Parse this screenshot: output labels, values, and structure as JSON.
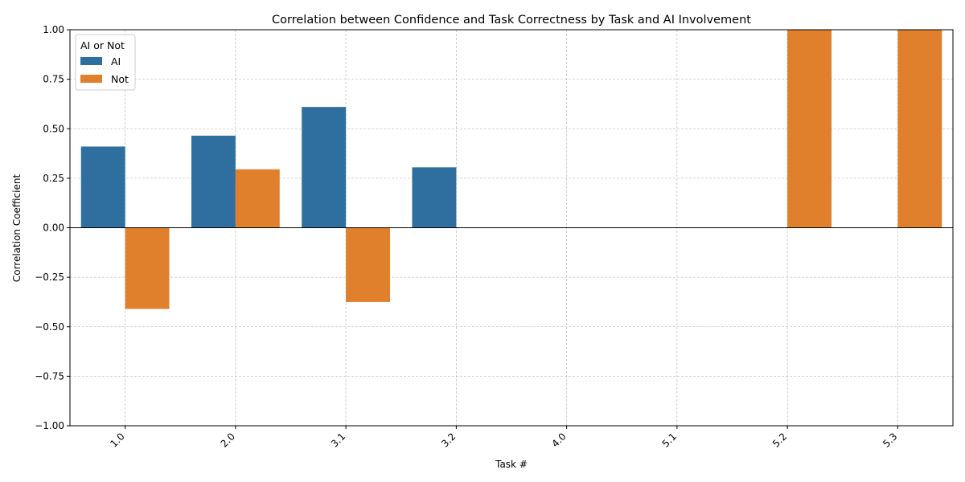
{
  "chart_data": {
    "type": "bar",
    "title": "Correlation between Confidence and Task Correctness by Task and AI Involvement",
    "xlabel": "Task #",
    "ylabel": "Correlation Coefficient",
    "ylim": [
      -1,
      1
    ],
    "yticks": [
      -1.0,
      -0.75,
      -0.5,
      -0.25,
      0.0,
      0.25,
      0.5,
      0.75,
      1.0
    ],
    "ytick_labels": [
      "−1.00",
      "−0.75",
      "−0.50",
      "−0.25",
      "0.00",
      "0.25",
      "0.50",
      "0.75",
      "1.00"
    ],
    "grid": true,
    "categories": [
      "1.0",
      "2.0",
      "3.1",
      "3.2",
      "4.0",
      "5.1",
      "5.2",
      "5.3"
    ],
    "legend": {
      "title": "AI or Not",
      "placement": "top-left"
    },
    "series": [
      {
        "name": "AI",
        "color": "#2f6f9f",
        "values": [
          0.41,
          0.465,
          0.61,
          0.305,
          null,
          null,
          null,
          null
        ]
      },
      {
        "name": "Not",
        "color": "#e07f2c",
        "values": [
          -0.41,
          0.295,
          -0.375,
          null,
          null,
          null,
          1.0,
          1.0
        ]
      }
    ]
  }
}
